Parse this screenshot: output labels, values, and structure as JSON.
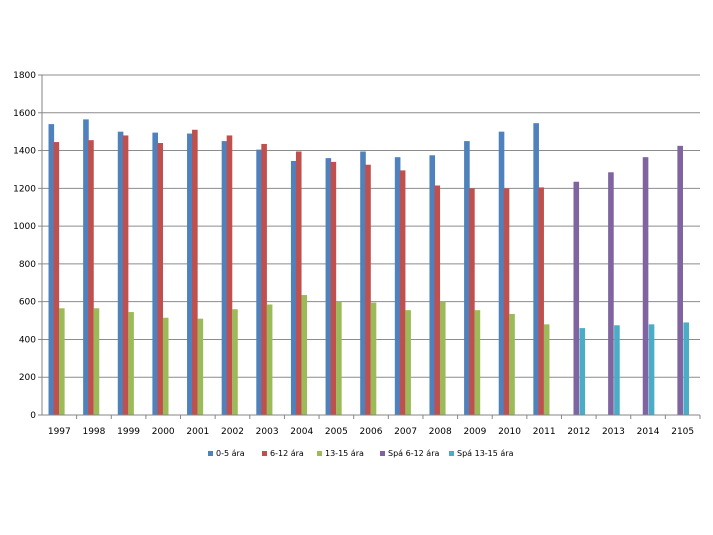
{
  "chart_data": {
    "type": "bar",
    "title": "",
    "xlabel": "",
    "ylabel": "",
    "ylim": [
      0,
      1800
    ],
    "yticks": [
      0,
      200,
      400,
      600,
      800,
      1000,
      1200,
      1400,
      1600,
      1800
    ],
    "grid": true,
    "legend_position": "bottom",
    "categories": [
      "1997",
      "1998",
      "1999",
      "2000",
      "2001",
      "2002",
      "2003",
      "2004",
      "2005",
      "2006",
      "2007",
      "2008",
      "2009",
      "2010",
      "2011",
      "2012",
      "2013",
      "2014",
      "2105"
    ],
    "series": [
      {
        "name": "0-5 ára",
        "color": "#4f81bd",
        "values": [
          1540,
          1565,
          1500,
          1495,
          1490,
          1450,
          1405,
          1345,
          1360,
          1395,
          1365,
          1375,
          1450,
          1500,
          1545,
          null,
          null,
          null,
          null
        ]
      },
      {
        "name": "6-12 ára",
        "color": "#c0504d",
        "values": [
          1445,
          1455,
          1480,
          1440,
          1510,
          1480,
          1435,
          1395,
          1340,
          1325,
          1295,
          1215,
          1200,
          1200,
          1205,
          null,
          null,
          null,
          null
        ]
      },
      {
        "name": "13-15 ára",
        "color": "#9bbb59",
        "values": [
          565,
          565,
          545,
          515,
          510,
          560,
          585,
          635,
          600,
          595,
          555,
          600,
          555,
          535,
          480,
          null,
          null,
          null,
          null
        ]
      },
      {
        "name": "Spá 6-12 ára",
        "color": "#8064a2",
        "values": [
          null,
          null,
          null,
          null,
          null,
          null,
          null,
          null,
          null,
          null,
          null,
          null,
          null,
          null,
          null,
          1235,
          1285,
          1365,
          1425
        ]
      },
      {
        "name": "Spá 13-15 ára",
        "color": "#4bacc6",
        "values": [
          null,
          null,
          null,
          null,
          null,
          null,
          null,
          null,
          null,
          null,
          null,
          null,
          null,
          null,
          null,
          460,
          475,
          480,
          490
        ]
      }
    ]
  }
}
